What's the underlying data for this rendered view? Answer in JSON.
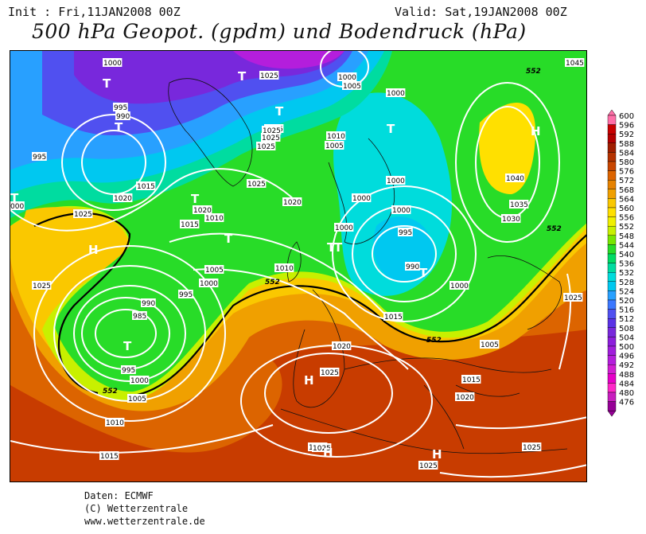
{
  "header": {
    "init": "Init : Fri,11JAN2008 00Z",
    "valid": "Valid: Sat,19JAN2008 00Z",
    "title": "500 hPa Geopot. (gpdm) und Bodendruck (hPa)"
  },
  "footer": {
    "line1": "Daten: ECMWF",
    "line2": "(C) Wetterzentrale",
    "line3": "www.wetterzentrale.de"
  },
  "legend": {
    "levels": [
      "600",
      "596",
      "592",
      "588",
      "584",
      "580",
      "576",
      "572",
      "568",
      "564",
      "560",
      "556",
      "552",
      "548",
      "544",
      "540",
      "536",
      "532",
      "528",
      "524",
      "520",
      "516",
      "512",
      "508",
      "504",
      "500",
      "496",
      "492",
      "488",
      "484",
      "480",
      "476"
    ],
    "colors": [
      "#ff6fa8",
      "#c80000",
      "#b40000",
      "#a01e00",
      "#b43200",
      "#c84600",
      "#dc6400",
      "#e68200",
      "#f0a000",
      "#fac800",
      "#ffe000",
      "#f0f000",
      "#c8f000",
      "#78e600",
      "#28dc28",
      "#00dc64",
      "#00dca0",
      "#00dcdc",
      "#00c8f0",
      "#28a0ff",
      "#3c78ff",
      "#5050f0",
      "#5a32e6",
      "#7828dc",
      "#8c1edc",
      "#a01edc",
      "#b41edc",
      "#d21ed2",
      "#e600c8",
      "#ff28c8",
      "#c81ebe",
      "#960096"
    ]
  },
  "map": {
    "pressure_labels": [
      {
        "text": "1000"
      },
      {
        "text": "1025"
      },
      {
        "text": "1025"
      },
      {
        "text": "1000"
      },
      {
        "text": "1005"
      },
      {
        "text": "1045"
      },
      {
        "text": "995"
      },
      {
        "text": "990"
      },
      {
        "text": "995"
      },
      {
        "text": "1025"
      },
      {
        "text": "1025"
      },
      {
        "text": "1025"
      },
      {
        "text": "1010"
      },
      {
        "text": "1005"
      },
      {
        "text": "1000"
      },
      {
        "text": "1000"
      },
      {
        "text": "1015"
      },
      {
        "text": "1020"
      },
      {
        "text": "1025"
      },
      {
        "text": "1020"
      },
      {
        "text": "1015"
      },
      {
        "text": "1010"
      },
      {
        "text": "1020"
      },
      {
        "text": "1025"
      },
      {
        "text": "1000"
      },
      {
        "text": "1000"
      },
      {
        "text": "1040"
      },
      {
        "text": "1035"
      },
      {
        "text": "1030"
      },
      {
        "text": "1000"
      },
      {
        "text": "995"
      },
      {
        "text": "990"
      },
      {
        "text": "1025"
      },
      {
        "text": "1005"
      },
      {
        "text": "1000"
      },
      {
        "text": "995"
      },
      {
        "text": "990"
      },
      {
        "text": "985"
      },
      {
        "text": "1010"
      },
      {
        "text": "1000"
      },
      {
        "text": "1015"
      },
      {
        "text": "1020"
      },
      {
        "text": "1025"
      },
      {
        "text": "1005"
      },
      {
        "text": "1015"
      },
      {
        "text": "995"
      },
      {
        "text": "1000"
      },
      {
        "text": "1005"
      },
      {
        "text": "1010"
      },
      {
        "text": "1020"
      },
      {
        "text": "1015"
      },
      {
        "text": "1025"
      },
      {
        "text": "1025"
      },
      {
        "text": "1025"
      },
      {
        "text": "1025"
      },
      {
        "text": "1025"
      },
      {
        "text": "1015"
      },
      {
        "text": "1025"
      },
      {
        "text": "000"
      }
    ],
    "height_labels": [
      {
        "text": "552"
      },
      {
        "text": "552"
      },
      {
        "text": "552"
      },
      {
        "text": "552"
      },
      {
        "text": "552"
      }
    ],
    "symbols": [
      {
        "text": "T"
      },
      {
        "text": "T"
      },
      {
        "text": "T"
      },
      {
        "text": "T"
      },
      {
        "text": "T"
      },
      {
        "text": "T"
      },
      {
        "text": "T"
      },
      {
        "text": "T"
      },
      {
        "text": "T"
      },
      {
        "text": "T"
      },
      {
        "text": "T"
      },
      {
        "text": "T"
      },
      {
        "text": "H"
      },
      {
        "text": "H"
      },
      {
        "text": "H"
      },
      {
        "text": "H"
      },
      {
        "text": "H"
      }
    ]
  }
}
